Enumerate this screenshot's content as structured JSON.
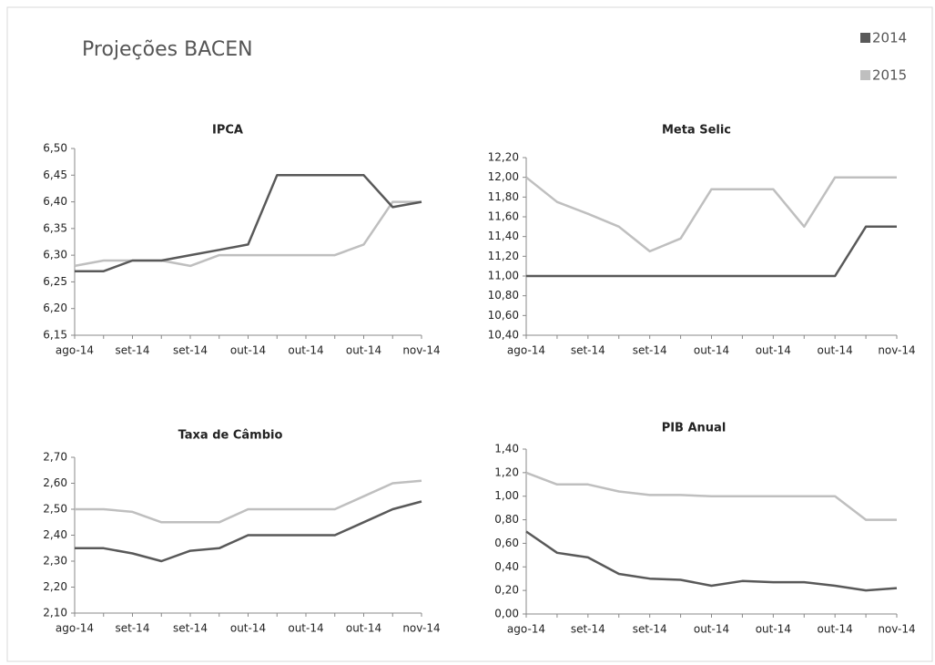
{
  "title": "Projeções BACEN",
  "chart_data": [
    {
      "type": "line",
      "title": "IPCA",
      "categories": [
        "ago-14",
        null,
        "set-14",
        null,
        "set-14",
        null,
        "out-14",
        null,
        "out-14",
        null,
        "out-14",
        null,
        "nov-14"
      ],
      "series": [
        {
          "name": "2014",
          "color": "#595959",
          "values": [
            6.27,
            6.27,
            6.29,
            6.29,
            6.3,
            6.31,
            6.32,
            6.45,
            6.45,
            6.45,
            6.45,
            6.39,
            6.4
          ]
        },
        {
          "name": "2015",
          "color": "#bfbfbf",
          "values": [
            6.28,
            6.29,
            6.29,
            6.29,
            6.28,
            6.3,
            6.3,
            6.3,
            6.3,
            6.3,
            6.32,
            6.4,
            6.4
          ]
        }
      ],
      "ylim": [
        6.15,
        6.5
      ],
      "yticks": [
        {
          "value": 6.15,
          "label": "6,15"
        },
        {
          "value": 6.2,
          "label": "6,20"
        },
        {
          "value": 6.25,
          "label": "6,25"
        },
        {
          "value": 6.3,
          "label": "6,30"
        },
        {
          "value": 6.35,
          "label": "6,35"
        },
        {
          "value": 6.4,
          "label": "6,40"
        },
        {
          "value": 6.45,
          "label": "6,45"
        },
        {
          "value": 6.5,
          "label": "6,50"
        }
      ]
    },
    {
      "type": "line",
      "title": "Meta Selic",
      "categories": [
        "ago-14",
        null,
        "set-14",
        null,
        "set-14",
        null,
        "out-14",
        null,
        "out-14",
        null,
        "out-14",
        null,
        "nov-14"
      ],
      "series": [
        {
          "name": "2014",
          "color": "#595959",
          "values": [
            11.0,
            11.0,
            11.0,
            11.0,
            11.0,
            11.0,
            11.0,
            11.0,
            11.0,
            11.0,
            11.0,
            11.5,
            11.5
          ]
        },
        {
          "name": "2015",
          "color": "#bfbfbf",
          "values": [
            12.0,
            11.75,
            11.63,
            11.5,
            11.25,
            11.38,
            11.88,
            11.88,
            11.88,
            11.5,
            12.0,
            12.0,
            12.0
          ]
        }
      ],
      "ylim": [
        10.4,
        12.2
      ],
      "yticks": [
        {
          "value": 10.4,
          "label": "10,40"
        },
        {
          "value": 10.6,
          "label": "10,60"
        },
        {
          "value": 10.8,
          "label": "10,80"
        },
        {
          "value": 11.0,
          "label": "11,00"
        },
        {
          "value": 11.2,
          "label": "11,20"
        },
        {
          "value": 11.4,
          "label": "11,40"
        },
        {
          "value": 11.6,
          "label": "11,60"
        },
        {
          "value": 11.8,
          "label": "11,80"
        },
        {
          "value": 12.0,
          "label": "12,00"
        },
        {
          "value": 12.2,
          "label": "12,20"
        }
      ]
    },
    {
      "type": "line",
      "title": "Taxa de Câmbio",
      "categories": [
        "ago-14",
        null,
        "set-14",
        null,
        "set-14",
        null,
        "out-14",
        null,
        "out-14",
        null,
        "out-14",
        null,
        "nov-14"
      ],
      "series": [
        {
          "name": "2014",
          "color": "#595959",
          "values": [
            2.35,
            2.35,
            2.33,
            2.3,
            2.34,
            2.35,
            2.4,
            2.4,
            2.4,
            2.4,
            2.45,
            2.5,
            2.53
          ]
        },
        {
          "name": "2015",
          "color": "#bfbfbf",
          "values": [
            2.5,
            2.5,
            2.49,
            2.45,
            2.45,
            2.45,
            2.5,
            2.5,
            2.5,
            2.5,
            2.55,
            2.6,
            2.61
          ]
        }
      ],
      "ylim": [
        2.1,
        2.7
      ],
      "yticks": [
        {
          "value": 2.1,
          "label": "2,10"
        },
        {
          "value": 2.2,
          "label": "2,20"
        },
        {
          "value": 2.3,
          "label": "2,30"
        },
        {
          "value": 2.4,
          "label": "2,40"
        },
        {
          "value": 2.5,
          "label": "2,50"
        },
        {
          "value": 2.6,
          "label": "2,60"
        },
        {
          "value": 2.7,
          "label": "2,70"
        }
      ]
    },
    {
      "type": "line",
      "title": "PIB Anual",
      "categories": [
        "ago-14",
        null,
        "set-14",
        null,
        "set-14",
        null,
        "out-14",
        null,
        "out-14",
        null,
        "out-14",
        null,
        "nov-14"
      ],
      "series": [
        {
          "name": "2014",
          "color": "#595959",
          "values": [
            0.7,
            0.52,
            0.48,
            0.34,
            0.3,
            0.29,
            0.24,
            0.28,
            0.27,
            0.27,
            0.24,
            0.2,
            0.22
          ]
        },
        {
          "name": "2015",
          "color": "#bfbfbf",
          "values": [
            1.2,
            1.1,
            1.1,
            1.04,
            1.01,
            1.01,
            1.0,
            1.0,
            1.0,
            1.0,
            1.0,
            0.8,
            0.8
          ]
        }
      ],
      "ylim": [
        0,
        1.4
      ],
      "yticks": [
        {
          "value": 0,
          "label": "0,00"
        },
        {
          "value": 0.2,
          "label": "0,20"
        },
        {
          "value": 0.4,
          "label": "0,40"
        },
        {
          "value": 0.6,
          "label": "0,60"
        },
        {
          "value": 0.8,
          "label": "0,80"
        },
        {
          "value": 1.0,
          "label": "1,00"
        },
        {
          "value": 1.2,
          "label": "1,20"
        },
        {
          "value": 1.4,
          "label": "1,40"
        }
      ]
    }
  ]
}
